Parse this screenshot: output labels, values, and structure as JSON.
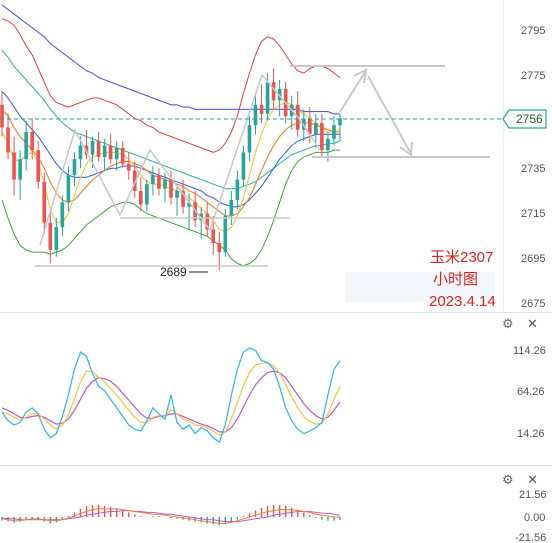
{
  "annotation": {
    "symbol": "玉米2307",
    "timeframe": "小时图",
    "date": "2023.4.14"
  },
  "main_panel": {
    "y_ticks": [
      "2795",
      "2775",
      "2756",
      "2735",
      "2715",
      "2695",
      "2675"
    ],
    "current_price_label": "2756",
    "low_label": "2689",
    "buttons": {
      "settings": "⚙",
      "close": "✕"
    }
  },
  "osc_panel": {
    "y_ticks": [
      "114.26",
      "64.26",
      "14.26"
    ],
    "buttons": {
      "settings": "⚙",
      "close": "✕"
    }
  },
  "macd_panel": {
    "y_ticks": [
      "21.56",
      "0.00",
      "-21.56"
    ],
    "buttons": {
      "settings": "⚙",
      "close": "✕"
    }
  },
  "colors": {
    "up": "#26a69a",
    "down": "#ef5350",
    "ma_fast": "#f5c542",
    "ma_mid": "#f08030",
    "ma_slow": "#3a6fd8",
    "ma_long": "#5a5ad8",
    "ma_teal": "#3bb8a0",
    "boll_upper": "#e04040",
    "boll_lower": "#3aa83a",
    "osc_k": "#29b6f6",
    "osc_d": "#f5c542",
    "osc_j": "#c05ac8",
    "arrow": "#c8c8c8"
  },
  "chart_data": {
    "type": "candlestick",
    "price_range": [
      2670,
      2805
    ],
    "candles": [
      [
        2762,
        2768,
        2748,
        2752
      ],
      [
        2752,
        2758,
        2738,
        2741
      ],
      [
        2741,
        2748,
        2722,
        2729
      ],
      [
        2729,
        2742,
        2720,
        2738
      ],
      [
        2738,
        2755,
        2733,
        2750
      ],
      [
        2750,
        2756,
        2738,
        2742
      ],
      [
        2742,
        2746,
        2725,
        2728
      ],
      [
        2728,
        2732,
        2705,
        2710
      ],
      [
        2710,
        2716,
        2692,
        2698
      ],
      [
        2698,
        2712,
        2695,
        2708
      ],
      [
        2708,
        2722,
        2704,
        2719
      ],
      [
        2719,
        2735,
        2715,
        2731
      ],
      [
        2731,
        2741,
        2726,
        2738
      ],
      [
        2738,
        2748,
        2734,
        2744
      ],
      [
        2744,
        2751,
        2738,
        2740
      ],
      [
        2740,
        2748,
        2734,
        2746
      ],
      [
        2746,
        2750,
        2737,
        2739
      ],
      [
        2739,
        2747,
        2733,
        2744
      ],
      [
        2744,
        2749,
        2736,
        2738
      ],
      [
        2738,
        2746,
        2733,
        2743
      ],
      [
        2743,
        2746,
        2734,
        2736
      ],
      [
        2736,
        2741,
        2729,
        2733
      ],
      [
        2733,
        2737,
        2721,
        2724
      ],
      [
        2724,
        2730,
        2715,
        2718
      ],
      [
        2718,
        2729,
        2715,
        2727
      ],
      [
        2727,
        2735,
        2722,
        2731
      ],
      [
        2731,
        2734,
        2722,
        2725
      ],
      [
        2725,
        2732,
        2719,
        2729
      ],
      [
        2729,
        2733,
        2718,
        2721
      ],
      [
        2721,
        2727,
        2713,
        2724
      ],
      [
        2724,
        2729,
        2714,
        2717
      ],
      [
        2717,
        2723,
        2707,
        2719
      ],
      [
        2719,
        2724,
        2708,
        2711
      ],
      [
        2711,
        2717,
        2703,
        2714
      ],
      [
        2714,
        2719,
        2704,
        2707
      ],
      [
        2707,
        2713,
        2696,
        2701
      ],
      [
        2701,
        2706,
        2689,
        2697
      ],
      [
        2697,
        2716,
        2695,
        2713
      ],
      [
        2713,
        2724,
        2709,
        2720
      ],
      [
        2720,
        2733,
        2716,
        2729
      ],
      [
        2729,
        2744,
        2726,
        2741
      ],
      [
        2741,
        2757,
        2737,
        2753
      ],
      [
        2753,
        2766,
        2749,
        2762
      ],
      [
        2762,
        2771,
        2754,
        2758
      ],
      [
        2758,
        2776,
        2755,
        2772
      ],
      [
        2772,
        2778,
        2760,
        2764
      ],
      [
        2764,
        2773,
        2757,
        2769
      ],
      [
        2769,
        2772,
        2754,
        2757
      ],
      [
        2757,
        2766,
        2751,
        2762
      ],
      [
        2762,
        2768,
        2748,
        2751
      ],
      [
        2751,
        2760,
        2746,
        2756
      ],
      [
        2756,
        2761,
        2745,
        2749
      ],
      [
        2749,
        2758,
        2743,
        2754
      ],
      [
        2754,
        2758,
        2739,
        2742
      ],
      [
        2742,
        2750,
        2737,
        2747
      ],
      [
        2747,
        2757,
        2744,
        2753
      ],
      [
        2753,
        2758,
        2746,
        2756
      ]
    ],
    "ma_fast": [
      2750,
      2745,
      2738,
      2737,
      2740,
      2741,
      2737,
      2727,
      2716,
      2710,
      2710,
      2714,
      2722,
      2730,
      2736,
      2739,
      2740,
      2741,
      2741,
      2741,
      2740,
      2738,
      2735,
      2731,
      2728,
      2727,
      2727,
      2726,
      2725,
      2724,
      2723,
      2721,
      2719,
      2716,
      2714,
      2711,
      2707,
      2706,
      2708,
      2713,
      2721,
      2731,
      2741,
      2749,
      2756,
      2760,
      2762,
      2763,
      2762,
      2760,
      2758,
      2756,
      2754,
      2752,
      2750,
      2750,
      2751
    ],
    "ma_mid": [
      2760,
      2757,
      2752,
      2748,
      2745,
      2742,
      2739,
      2734,
      2728,
      2723,
      2720,
      2719,
      2720,
      2723,
      2726,
      2729,
      2731,
      2733,
      2735,
      2736,
      2737,
      2737,
      2736,
      2735,
      2733,
      2731,
      2730,
      2729,
      2728,
      2727,
      2726,
      2724,
      2723,
      2721,
      2719,
      2717,
      2715,
      2713,
      2713,
      2714,
      2717,
      2721,
      2727,
      2733,
      2739,
      2744,
      2748,
      2751,
      2753,
      2754,
      2754,
      2754,
      2753,
      2752,
      2751,
      2750,
      2750
    ],
    "ma_slow": [
      2768,
      2765,
      2761,
      2757,
      2754,
      2751,
      2748,
      2744,
      2740,
      2736,
      2733,
      2731,
      2730,
      2730,
      2730,
      2731,
      2732,
      2733,
      2734,
      2734,
      2735,
      2735,
      2735,
      2734,
      2733,
      2732,
      2731,
      2730,
      2729,
      2728,
      2727,
      2726,
      2725,
      2724,
      2722,
      2721,
      2719,
      2718,
      2717,
      2717,
      2718,
      2720,
      2723,
      2726,
      2730,
      2734,
      2738,
      2741,
      2744,
      2746,
      2747,
      2748,
      2749,
      2749,
      2749,
      2749,
      2749
    ],
    "ma_long": [
      2806,
      2804,
      2802,
      2800,
      2798,
      2796,
      2794,
      2792,
      2789,
      2787,
      2785,
      2783,
      2781,
      2779,
      2777,
      2776,
      2774,
      2773,
      2772,
      2771,
      2770,
      2769,
      2768,
      2767,
      2766,
      2765,
      2764,
      2763,
      2762,
      2762,
      2761,
      2761,
      2760,
      2760,
      2760,
      2760,
      2760,
      2760,
      2760,
      2760,
      2760,
      2760,
      2760,
      2760,
      2760,
      2760,
      2760,
      2760,
      2760,
      2760,
      2759,
      2759,
      2759,
      2759,
      2759,
      2758,
      2758
    ],
    "ma_teal": [
      2786,
      2783,
      2779,
      2776,
      2773,
      2770,
      2767,
      2764,
      2760,
      2757,
      2754,
      2752,
      2750,
      2749,
      2748,
      2747,
      2746,
      2745,
      2744,
      2743,
      2742,
      2741,
      2740,
      2739,
      2738,
      2737,
      2736,
      2735,
      2734,
      2733,
      2732,
      2731,
      2730,
      2729,
      2728,
      2727,
      2726,
      2725,
      2725,
      2725,
      2726,
      2727,
      2728,
      2730,
      2732,
      2734,
      2736,
      2738,
      2740,
      2741,
      2742,
      2743,
      2744,
      2744,
      2745,
      2745,
      2746
    ],
    "boll_upper": [
      2800,
      2799,
      2797,
      2793,
      2788,
      2784,
      2778,
      2772,
      2766,
      2763,
      2762,
      2761,
      2762,
      2763,
      2764,
      2765,
      2765,
      2764,
      2763,
      2762,
      2760,
      2758,
      2756,
      2755,
      2753,
      2752,
      2750,
      2749,
      2748,
      2747,
      2746,
      2745,
      2744,
      2743,
      2742,
      2741,
      2742,
      2745,
      2750,
      2757,
      2767,
      2776,
      2784,
      2790,
      2792,
      2791,
      2788,
      2784,
      2780,
      2777,
      2776,
      2778,
      2779,
      2779,
      2778,
      2776,
      2774
    ],
    "boll_lower": [
      2720,
      2712,
      2705,
      2700,
      2698,
      2697,
      2697,
      2697,
      2696,
      2697,
      2698,
      2700,
      2703,
      2706,
      2709,
      2711,
      2713,
      2715,
      2717,
      2718,
      2719,
      2719,
      2718,
      2716,
      2714,
      2713,
      2712,
      2711,
      2710,
      2709,
      2708,
      2707,
      2706,
      2705,
      2704,
      2702,
      2700,
      2698,
      2694,
      2692,
      2691,
      2692,
      2694,
      2698,
      2704,
      2711,
      2719,
      2727,
      2733,
      2737,
      2739,
      2740,
      2741,
      2741,
      2741,
      2742,
      2742
    ],
    "osc_range": [
      -10,
      130
    ],
    "osc_k": [
      40,
      30,
      25,
      28,
      40,
      45,
      38,
      20,
      10,
      15,
      35,
      60,
      90,
      110,
      105,
      85,
      70,
      65,
      55,
      45,
      35,
      25,
      20,
      18,
      30,
      45,
      38,
      32,
      60,
      28,
      20,
      25,
      15,
      22,
      18,
      10,
      5,
      25,
      60,
      90,
      110,
      115,
      112,
      100,
      98,
      90,
      70,
      45,
      30,
      20,
      15,
      18,
      22,
      28,
      60,
      90,
      100
    ],
    "osc_d": [
      40,
      38,
      34,
      31,
      34,
      38,
      38,
      32,
      25,
      20,
      25,
      37,
      55,
      75,
      88,
      87,
      81,
      75,
      68,
      60,
      51,
      42,
      34,
      28,
      28,
      34,
      36,
      35,
      43,
      38,
      32,
      30,
      25,
      24,
      22,
      18,
      13,
      17,
      32,
      51,
      71,
      86,
      95,
      97,
      97,
      94,
      86,
      72,
      58,
      45,
      35,
      29,
      26,
      27,
      38,
      55,
      70
    ],
    "osc_j": [
      45,
      42,
      38,
      34,
      33,
      35,
      36,
      34,
      30,
      26,
      27,
      32,
      42,
      55,
      68,
      76,
      80,
      79,
      76,
      70,
      62,
      54,
      46,
      38,
      33,
      33,
      35,
      36,
      38,
      38,
      35,
      32,
      29,
      26,
      24,
      21,
      17,
      17,
      22,
      32,
      46,
      60,
      72,
      80,
      86,
      88,
      86,
      80,
      70,
      60,
      50,
      42,
      36,
      32,
      34,
      42,
      52
    ],
    "macd_range": [
      -25,
      25
    ],
    "macd_hist": [
      -4,
      -5,
      -6,
      -5,
      -3,
      -2,
      -3,
      -5,
      -7,
      -6,
      -3,
      1,
      5,
      9,
      12,
      13,
      13,
      12,
      11,
      9,
      7,
      5,
      3,
      1,
      0,
      1,
      1,
      0,
      -1,
      -2,
      -3,
      -4,
      -5,
      -6,
      -7,
      -8,
      -9,
      -8,
      -6,
      -3,
      1,
      4,
      7,
      10,
      12,
      13,
      13,
      12,
      10,
      8,
      5,
      2,
      -1,
      -3,
      -4,
      -4,
      -3
    ],
    "macd_dif": [
      -2,
      -3,
      -4,
      -4,
      -3,
      -2,
      -2,
      -3,
      -4,
      -4,
      -3,
      -1,
      1,
      4,
      6,
      8,
      9,
      9,
      9,
      9,
      8,
      7,
      6,
      5,
      4,
      3,
      3,
      2,
      1,
      0,
      -1,
      -2,
      -3,
      -4,
      -5,
      -6,
      -7,
      -7,
      -6,
      -4,
      -2,
      0,
      2,
      4,
      6,
      7,
      8,
      8,
      8,
      7,
      6,
      5,
      3,
      2,
      1,
      0,
      0
    ],
    "macd_dea": [
      -1,
      -2,
      -2,
      -3,
      -3,
      -3,
      -3,
      -3,
      -3,
      -3,
      -3,
      -2,
      -1,
      0,
      2,
      3,
      4,
      5,
      6,
      6,
      7,
      7,
      6,
      6,
      5,
      5,
      4,
      3,
      3,
      2,
      1,
      0,
      -1,
      -2,
      -3,
      -3,
      -4,
      -5,
      -5,
      -5,
      -4,
      -3,
      -2,
      -1,
      0,
      2,
      3,
      4,
      5,
      6,
      6,
      6,
      5,
      4,
      4,
      3,
      2
    ]
  }
}
